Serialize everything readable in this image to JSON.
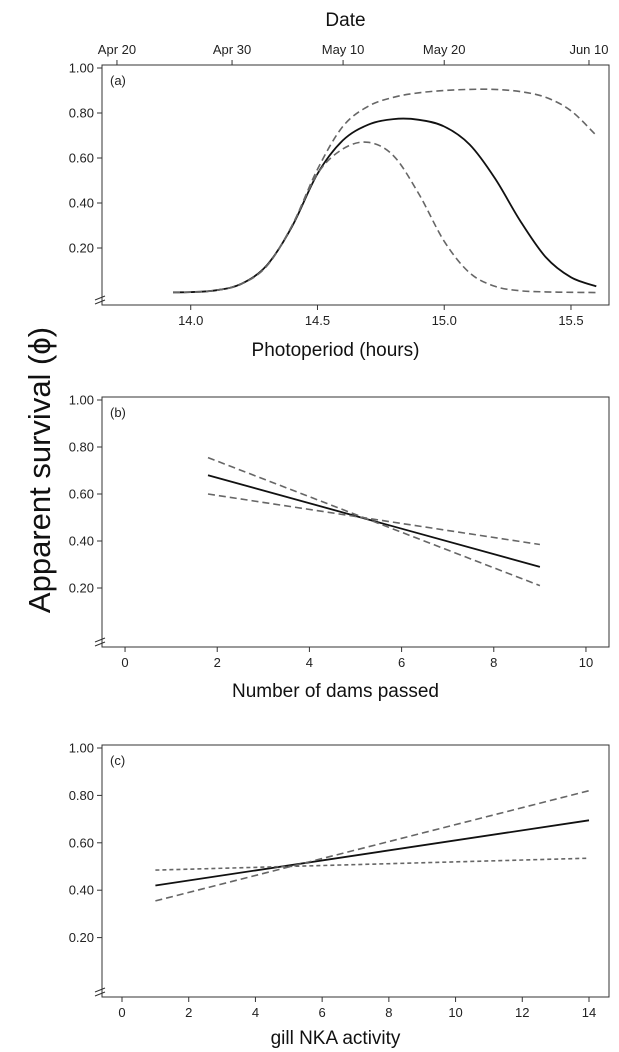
{
  "figure": {
    "shared_ylabel": "Apparent survival (ϕ)"
  },
  "chart_data": [
    {
      "type": "line",
      "panel_label": "(a)",
      "xlabel": "Photoperiod (hours)",
      "xlim": [
        13.65,
        15.65
      ],
      "xticks": [
        14.0,
        14.5,
        15.0,
        15.5
      ],
      "xtick_labels": [
        "14.0",
        "14.5",
        "15.0",
        "15.5"
      ],
      "top_axis": {
        "label": "Date",
        "ticks": [
          13.709,
          14.163,
          14.601,
          15.0,
          15.571
        ],
        "tick_labels": [
          "Apr 20",
          "Apr 30",
          "May 10",
          "May 20",
          "Jun 10"
        ]
      },
      "ylim": [
        0.0,
        1.0
      ],
      "yticks": [
        0.2,
        0.4,
        0.6,
        0.8,
        1.0
      ],
      "ytick_labels": [
        "0.20",
        "0.40",
        "0.60",
        "0.80",
        "1.00"
      ],
      "axis_break": true,
      "series": [
        {
          "style": "solid",
          "x": [
            13.93,
            14.0,
            14.1,
            14.2,
            14.3,
            14.4,
            14.5,
            14.6,
            14.7,
            14.8,
            14.9,
            15.0,
            15.1,
            15.2,
            15.3,
            15.4,
            15.5,
            15.6
          ],
          "y": [
            0.003,
            0.004,
            0.012,
            0.041,
            0.123,
            0.296,
            0.53,
            0.678,
            0.748,
            0.773,
            0.77,
            0.74,
            0.66,
            0.51,
            0.32,
            0.16,
            0.07,
            0.03
          ]
        },
        {
          "style": "dashed",
          "x": [
            13.93,
            14.0,
            14.1,
            14.2,
            14.3,
            14.4,
            14.5,
            14.6,
            14.7,
            14.8,
            14.9,
            15.0,
            15.1,
            15.2,
            15.3,
            15.4,
            15.5,
            15.6
          ],
          "y": [
            0.003,
            0.004,
            0.012,
            0.04,
            0.12,
            0.3,
            0.55,
            0.74,
            0.83,
            0.87,
            0.89,
            0.9,
            0.905,
            0.905,
            0.895,
            0.87,
            0.81,
            0.7
          ]
        },
        {
          "style": "dashed",
          "x": [
            13.93,
            14.0,
            14.1,
            14.2,
            14.3,
            14.4,
            14.5,
            14.6,
            14.7,
            14.8,
            14.9,
            15.0,
            15.1,
            15.2,
            15.3,
            15.4,
            15.5,
            15.6
          ],
          "y": [
            0.003,
            0.004,
            0.012,
            0.04,
            0.12,
            0.3,
            0.53,
            0.64,
            0.67,
            0.61,
            0.44,
            0.23,
            0.09,
            0.03,
            0.01,
            0.005,
            0.003,
            0.002
          ]
        }
      ]
    },
    {
      "type": "line",
      "panel_label": "(b)",
      "xlabel": "Number of dams passed",
      "xlim": [
        -0.5,
        10.5
      ],
      "xticks": [
        0,
        2,
        4,
        6,
        8,
        10
      ],
      "xtick_labels": [
        "0",
        "2",
        "4",
        "6",
        "8",
        "10"
      ],
      "ylim": [
        0.0,
        1.0
      ],
      "yticks": [
        0.2,
        0.4,
        0.6,
        0.8,
        1.0
      ],
      "ytick_labels": [
        "0.20",
        "0.40",
        "0.60",
        "0.80",
        "1.00"
      ],
      "axis_break": true,
      "series": [
        {
          "style": "solid",
          "x": [
            1.8,
            9.0
          ],
          "y": [
            0.68,
            0.29
          ]
        },
        {
          "style": "dashed",
          "x": [
            1.8,
            9.0
          ],
          "y": [
            0.755,
            0.21
          ]
        },
        {
          "style": "dashed",
          "x": [
            1.8,
            9.0
          ],
          "y": [
            0.6,
            0.385
          ]
        }
      ]
    },
    {
      "type": "line",
      "panel_label": "(c)",
      "xlabel": "gill NKA activity",
      "xlim": [
        -0.6,
        14.6
      ],
      "xticks": [
        0,
        2,
        4,
        6,
        8,
        10,
        12,
        14
      ],
      "xtick_labels": [
        "0",
        "2",
        "4",
        "6",
        "8",
        "10",
        "12",
        "14"
      ],
      "ylim": [
        0.0,
        1.0
      ],
      "yticks": [
        0.2,
        0.4,
        0.6,
        0.8,
        1.0
      ],
      "ytick_labels": [
        "0.20",
        "0.40",
        "0.60",
        "0.80",
        "1.00"
      ],
      "axis_break": true,
      "series": [
        {
          "style": "solid",
          "x": [
            1.0,
            14.0
          ],
          "y": [
            0.42,
            0.695
          ]
        },
        {
          "style": "dashed",
          "x": [
            1.0,
            14.0
          ],
          "y": [
            0.355,
            0.82
          ]
        },
        {
          "style": "dashed",
          "x": [
            1.0,
            14.0
          ],
          "y": [
            0.485,
            0.535
          ]
        }
      ]
    }
  ],
  "colors": {
    "solid_line": "#111111",
    "dashed_line": "#666666",
    "axis": "#333333"
  }
}
